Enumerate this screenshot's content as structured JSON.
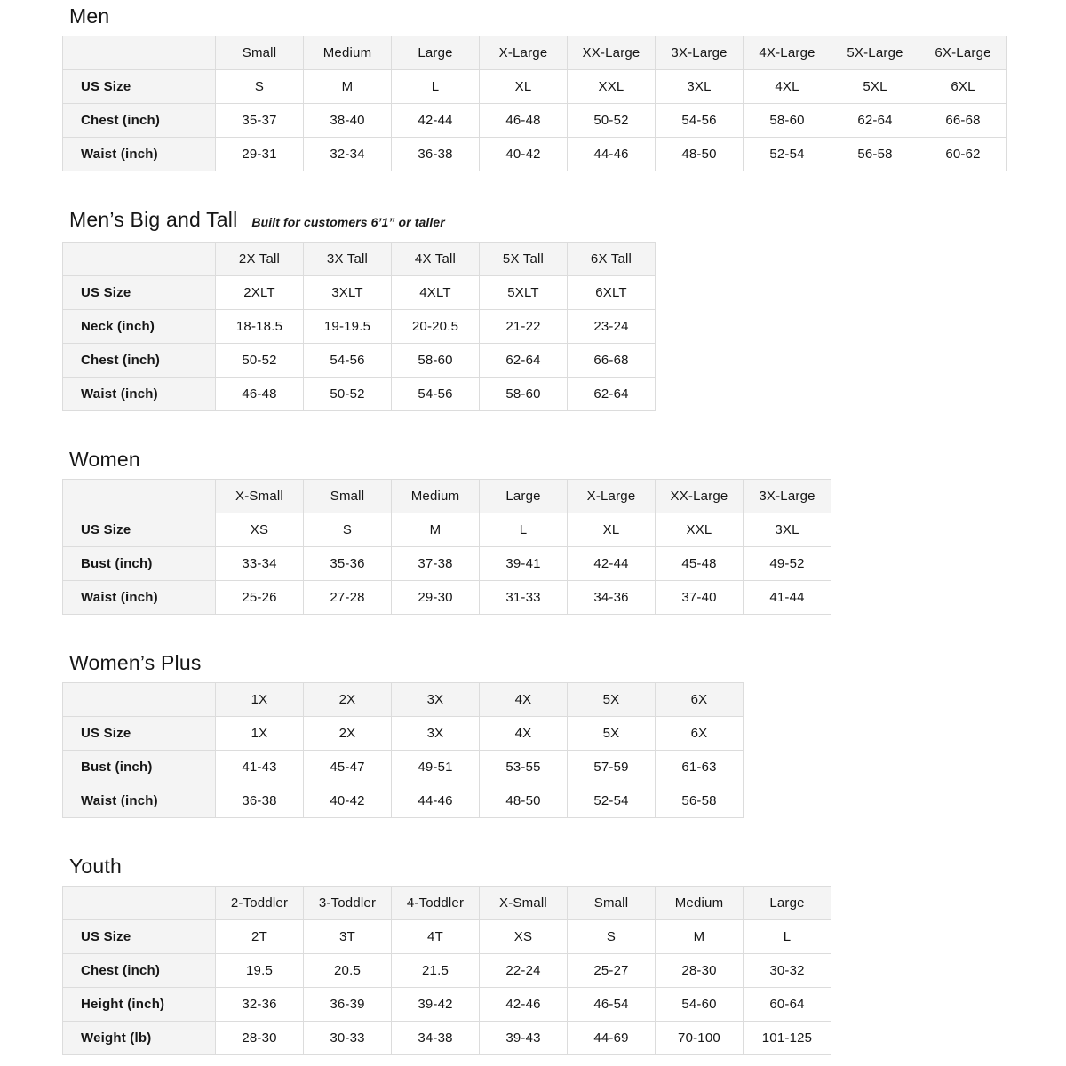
{
  "sections": [
    {
      "title": "Men",
      "subtitle": "",
      "columns": [
        "Small",
        "Medium",
        "Large",
        "X-Large",
        "XX-Large",
        "3X-Large",
        "4X-Large",
        "5X-Large",
        "6X-Large"
      ],
      "rows": [
        {
          "label": "US Size",
          "values": [
            "S",
            "M",
            "L",
            "XL",
            "XXL",
            "3XL",
            "4XL",
            "5XL",
            "6XL"
          ]
        },
        {
          "label": "Chest (inch)",
          "values": [
            "35-37",
            "38-40",
            "42-44",
            "46-48",
            "50-52",
            "54-56",
            "58-60",
            "62-64",
            "66-68"
          ]
        },
        {
          "label": "Waist (inch)",
          "values": [
            "29-31",
            "32-34",
            "36-38",
            "40-42",
            "44-46",
            "48-50",
            "52-54",
            "56-58",
            "60-62"
          ]
        }
      ]
    },
    {
      "title": "Men’s Big and Tall",
      "subtitle": "Built for customers 6’1” or taller",
      "columns": [
        "2X Tall",
        "3X Tall",
        "4X Tall",
        "5X Tall",
        "6X Tall"
      ],
      "rows": [
        {
          "label": "US Size",
          "values": [
            "2XLT",
            "3XLT",
            "4XLT",
            "5XLT",
            "6XLT"
          ]
        },
        {
          "label": "Neck (inch)",
          "values": [
            "18-18.5",
            "19-19.5",
            "20-20.5",
            "21-22",
            "23-24"
          ]
        },
        {
          "label": "Chest (inch)",
          "values": [
            "50-52",
            "54-56",
            "58-60",
            "62-64",
            "66-68"
          ]
        },
        {
          "label": "Waist (inch)",
          "values": [
            "46-48",
            "50-52",
            "54-56",
            "58-60",
            "62-64"
          ]
        }
      ]
    },
    {
      "title": "Women",
      "subtitle": "",
      "columns": [
        "X-Small",
        "Small",
        "Medium",
        "Large",
        "X-Large",
        "XX-Large",
        "3X-Large"
      ],
      "rows": [
        {
          "label": "US Size",
          "values": [
            "XS",
            "S",
            "M",
            "L",
            "XL",
            "XXL",
            "3XL"
          ]
        },
        {
          "label": "Bust (inch)",
          "values": [
            "33-34",
            "35-36",
            "37-38",
            "39-41",
            "42-44",
            "45-48",
            "49-52"
          ]
        },
        {
          "label": "Waist (inch)",
          "values": [
            "25-26",
            "27-28",
            "29-30",
            "31-33",
            "34-36",
            "37-40",
            "41-44"
          ]
        }
      ]
    },
    {
      "title": "Women’s Plus",
      "subtitle": "",
      "columns": [
        "1X",
        "2X",
        "3X",
        "4X",
        "5X",
        "6X"
      ],
      "rows": [
        {
          "label": "US Size",
          "values": [
            "1X",
            "2X",
            "3X",
            "4X",
            "5X",
            "6X"
          ]
        },
        {
          "label": "Bust (inch)",
          "values": [
            "41-43",
            "45-47",
            "49-51",
            "53-55",
            "57-59",
            "61-63"
          ]
        },
        {
          "label": "Waist (inch)",
          "values": [
            "36-38",
            "40-42",
            "44-46",
            "48-50",
            "52-54",
            "56-58"
          ]
        }
      ]
    },
    {
      "title": "Youth",
      "subtitle": "",
      "columns": [
        "2-Toddler",
        "3-Toddler",
        "4-Toddler",
        "X-Small",
        "Small",
        "Medium",
        "Large"
      ],
      "rows": [
        {
          "label": "US Size",
          "values": [
            "2T",
            "3T",
            "4T",
            "XS",
            "S",
            "M",
            "L"
          ]
        },
        {
          "label": "Chest (inch)",
          "values": [
            "19.5",
            "20.5",
            "21.5",
            "22-24",
            "25-27",
            "28-30",
            "30-32"
          ]
        },
        {
          "label": "Height (inch)",
          "values": [
            "32-36",
            "36-39",
            "39-42",
            "42-46",
            "46-54",
            "54-60",
            "60-64"
          ]
        },
        {
          "label": "Weight (lb)",
          "values": [
            "28-30",
            "30-33",
            "34-38",
            "39-43",
            "44-69",
            "70-100",
            "101-125"
          ]
        }
      ]
    }
  ],
  "style": {
    "header_bg": "#f4f4f4",
    "border_color": "#dcdcdc",
    "text_color": "#161616"
  }
}
